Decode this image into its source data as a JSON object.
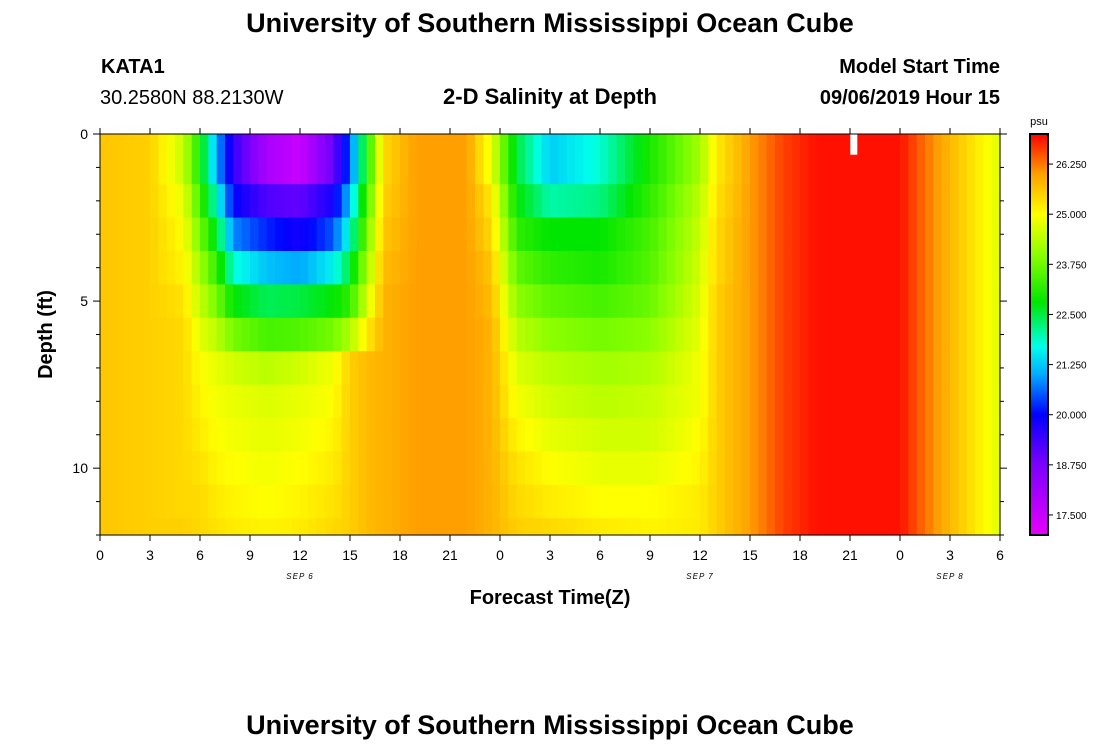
{
  "title": "University of Southern Mississippi Ocean Cube",
  "footer_title": "University of Southern Mississippi Ocean Cube",
  "station": {
    "name": "KATA1",
    "coords": "30.2580N 88.2130W"
  },
  "plot_title": "2-D Salinity at Depth",
  "model": {
    "label": "Model Start Time",
    "value": "09/06/2019 Hour 15"
  },
  "chart_data": {
    "type": "heatmap",
    "title": "2-D Salinity at Depth",
    "xlabel": "Forecast Time(Z)",
    "ylabel": "Depth (ft)",
    "x_hours": [
      0,
      54
    ],
    "x_ticks": [
      {
        "hour": 0,
        "label": "0"
      },
      {
        "hour": 3,
        "label": "3"
      },
      {
        "hour": 6,
        "label": "6"
      },
      {
        "hour": 9,
        "label": "9"
      },
      {
        "hour": 12,
        "label": "12"
      },
      {
        "hour": 15,
        "label": "15"
      },
      {
        "hour": 18,
        "label": "18"
      },
      {
        "hour": 21,
        "label": "21"
      },
      {
        "hour": 24,
        "label": "0"
      },
      {
        "hour": 27,
        "label": "3"
      },
      {
        "hour": 30,
        "label": "6"
      },
      {
        "hour": 33,
        "label": "9"
      },
      {
        "hour": 36,
        "label": "12"
      },
      {
        "hour": 39,
        "label": "15"
      },
      {
        "hour": 42,
        "label": "18"
      },
      {
        "hour": 45,
        "label": "21"
      },
      {
        "hour": 48,
        "label": "0"
      },
      {
        "hour": 51,
        "label": "3"
      },
      {
        "hour": 54,
        "label": "6"
      }
    ],
    "date_labels": [
      {
        "hour": 12,
        "label": "SEP 6"
      },
      {
        "hour": 36,
        "label": "SEP 7"
      },
      {
        "hour": 51,
        "label": "SEP 8"
      }
    ],
    "ylim": [
      0,
      12
    ],
    "y_ticks": [
      0,
      5,
      10
    ],
    "colorbar": {
      "unit": "psu",
      "min": 17.0,
      "max": 27.0,
      "ticks": [
        "17.500",
        "18.750",
        "20.000",
        "21.250",
        "22.500",
        "23.750",
        "25.000",
        "26.250"
      ]
    },
    "depth_levels_ft": [
      0,
      0.5,
      1.5,
      2.5,
      3.5,
      4.5,
      5.5,
      6.5,
      7.5,
      8.5,
      9.5,
      10.5,
      11.5
    ],
    "salinity_profiles": [
      {
        "hour": 0,
        "psu": [
          25.6,
          25.6,
          25.6,
          25.6,
          25.6,
          25.6,
          25.6,
          25.6,
          25.6,
          25.6,
          25.6,
          25.6,
          25.6
        ]
      },
      {
        "hour": 3,
        "psu": [
          25.5,
          25.5,
          25.5,
          25.5,
          25.5,
          25.5,
          25.5,
          25.5,
          25.5,
          25.5,
          25.5,
          25.5,
          25.5
        ]
      },
      {
        "hour": 5,
        "psu": [
          24.5,
          24.5,
          24.8,
          25.0,
          25.1,
          25.3,
          25.4,
          25.4,
          25.4,
          25.4,
          25.4,
          25.4,
          25.5
        ]
      },
      {
        "hour": 6,
        "psu": [
          23.0,
          23.0,
          23.4,
          23.8,
          24.2,
          24.5,
          24.8,
          25.0,
          25.1,
          25.2,
          25.3,
          25.4,
          25.4
        ]
      },
      {
        "hour": 7,
        "psu": [
          21.0,
          21.0,
          21.8,
          22.6,
          23.2,
          23.8,
          24.4,
          24.8,
          24.9,
          25.0,
          25.1,
          25.2,
          25.3
        ]
      },
      {
        "hour": 8,
        "psu": [
          19.5,
          19.5,
          20.0,
          20.8,
          21.8,
          22.8,
          23.8,
          24.6,
          24.8,
          24.9,
          25.0,
          25.1,
          25.2
        ]
      },
      {
        "hour": 10,
        "psu": [
          18.0,
          18.0,
          19.2,
          20.2,
          21.2,
          22.4,
          23.4,
          24.4,
          24.7,
          24.8,
          24.9,
          25.0,
          25.1
        ]
      },
      {
        "hour": 12,
        "psu": [
          17.5,
          17.5,
          19.0,
          19.8,
          21.0,
          22.5,
          23.5,
          24.6,
          24.8,
          24.9,
          25.0,
          25.1,
          25.2
        ]
      },
      {
        "hour": 14,
        "psu": [
          19.0,
          19.0,
          19.8,
          20.5,
          21.6,
          22.8,
          23.8,
          24.9,
          25.0,
          25.1,
          25.2,
          25.3,
          25.4
        ]
      },
      {
        "hour": 15,
        "psu": [
          20.5,
          20.5,
          21.2,
          21.8,
          22.5,
          23.2,
          24.3,
          25.5,
          25.5,
          25.5,
          25.5,
          25.5,
          25.5
        ]
      },
      {
        "hour": 16,
        "psu": [
          23.0,
          23.0,
          23.4,
          23.8,
          24.2,
          24.6,
          25.2,
          25.7,
          25.7,
          25.7,
          25.7,
          25.7,
          25.7
        ]
      },
      {
        "hour": 17,
        "psu": [
          25.4,
          25.4,
          25.5,
          25.6,
          25.7,
          25.8,
          25.8,
          25.8,
          25.8,
          25.8,
          25.8,
          25.8,
          25.8
        ]
      },
      {
        "hour": 19,
        "psu": [
          26.0,
          26.0,
          26.0,
          26.0,
          26.0,
          26.0,
          26.0,
          26.0,
          26.0,
          26.0,
          26.0,
          26.0,
          26.0
        ]
      },
      {
        "hour": 22,
        "psu": [
          26.0,
          26.0,
          26.0,
          26.0,
          26.0,
          26.0,
          26.0,
          26.0,
          26.0,
          26.0,
          26.0,
          26.0,
          26.0
        ]
      },
      {
        "hour": 23.5,
        "psu": [
          24.8,
          24.8,
          25.2,
          25.4,
          25.6,
          25.7,
          25.8,
          25.8,
          25.8,
          25.8,
          25.8,
          25.8,
          25.8
        ]
      },
      {
        "hour": 25,
        "psu": [
          22.5,
          22.5,
          22.8,
          23.2,
          23.6,
          24.0,
          24.4,
          24.7,
          24.9,
          25.1,
          25.3,
          25.4,
          25.5
        ]
      },
      {
        "hour": 27,
        "psu": [
          21.3,
          21.3,
          22.0,
          22.8,
          23.2,
          23.6,
          24.0,
          24.4,
          24.6,
          24.8,
          25.0,
          25.2,
          25.4
        ]
      },
      {
        "hour": 30,
        "psu": [
          21.8,
          21.8,
          22.2,
          22.8,
          23.0,
          23.4,
          23.8,
          24.2,
          24.4,
          24.6,
          24.8,
          25.0,
          25.2
        ]
      },
      {
        "hour": 33,
        "psu": [
          23.0,
          23.0,
          23.2,
          23.4,
          23.5,
          23.7,
          24.0,
          24.3,
          24.5,
          24.6,
          24.8,
          25.0,
          25.1
        ]
      },
      {
        "hour": 36,
        "psu": [
          24.2,
          24.2,
          24.4,
          24.5,
          24.6,
          24.7,
          24.8,
          24.9,
          24.9,
          25.0,
          25.1,
          25.2,
          25.2
        ]
      },
      {
        "hour": 37,
        "psu": [
          25.2,
          25.2,
          25.3,
          25.4,
          25.4,
          25.5,
          25.5,
          25.5,
          25.5,
          25.5,
          25.5,
          25.5,
          25.5
        ]
      },
      {
        "hour": 39,
        "psu": [
          26.0,
          26.0,
          26.0,
          26.0,
          26.0,
          26.0,
          26.0,
          26.0,
          26.0,
          26.0,
          26.0,
          26.0,
          26.0
        ]
      },
      {
        "hour": 41,
        "psu": [
          26.6,
          26.6,
          26.6,
          26.6,
          26.6,
          26.6,
          26.6,
          26.6,
          26.6,
          26.6,
          26.6,
          26.6,
          26.6
        ]
      },
      {
        "hour": 43,
        "psu": [
          26.9,
          26.9,
          26.9,
          26.9,
          26.9,
          26.9,
          26.9,
          26.9,
          26.9,
          26.9,
          26.9,
          26.9,
          26.9
        ]
      },
      {
        "hour": 48,
        "psu": [
          26.9,
          26.9,
          26.9,
          26.9,
          26.9,
          26.9,
          26.9,
          26.9,
          26.9,
          26.9,
          26.9,
          26.9,
          26.9
        ]
      },
      {
        "hour": 50,
        "psu": [
          26.1,
          26.1,
          26.1,
          26.1,
          26.1,
          26.1,
          26.1,
          26.1,
          26.1,
          26.1,
          26.1,
          26.1,
          26.1
        ]
      },
      {
        "hour": 52,
        "psu": [
          25.4,
          25.4,
          25.4,
          25.4,
          25.4,
          25.4,
          25.4,
          25.4,
          25.4,
          25.4,
          25.4,
          25.4,
          25.4
        ]
      },
      {
        "hour": 54,
        "psu": [
          24.7,
          24.7,
          24.7,
          24.7,
          24.7,
          24.7,
          24.7,
          24.7,
          24.7,
          24.7,
          24.7,
          24.7,
          24.7
        ]
      }
    ],
    "missing_data_marker": {
      "hour": 45.2,
      "depth_from": 0,
      "depth_to": 0.5
    }
  }
}
